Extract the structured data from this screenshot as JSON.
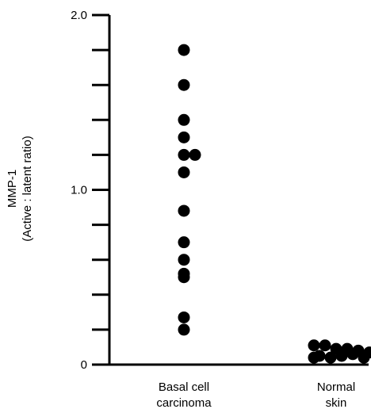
{
  "chart_data": {
    "type": "scatter",
    "ylabel_lines": [
      "MMP-1",
      "(Active : latent ratio)"
    ],
    "ylim": [
      0,
      2.0
    ],
    "y_major_ticks": [
      0,
      1.0,
      2.0
    ],
    "y_major_tick_labels": [
      "0",
      "1.0",
      "2.0"
    ],
    "y_minor_tick_step": 0.2,
    "categories": [
      {
        "lines": [
          "Basal cell",
          "carcinoma"
        ]
      },
      {
        "lines": [
          "Normal",
          "skin"
        ]
      }
    ],
    "grid": false,
    "legend": "none",
    "point_color": "#000000",
    "groups": [
      {
        "category_index": 0,
        "points": [
          {
            "y": 1.8,
            "offset": 0
          },
          {
            "y": 1.6,
            "offset": 0
          },
          {
            "y": 1.4,
            "offset": 0
          },
          {
            "y": 1.3,
            "offset": 0
          },
          {
            "y": 1.2,
            "offset": 0
          },
          {
            "y": 1.2,
            "offset": 1
          },
          {
            "y": 1.1,
            "offset": 0
          },
          {
            "y": 0.88,
            "offset": 0
          },
          {
            "y": 0.7,
            "offset": 0
          },
          {
            "y": 0.6,
            "offset": 0
          },
          {
            "y": 0.52,
            "offset": 0
          },
          {
            "y": 0.5,
            "offset": 0
          },
          {
            "y": 0.27,
            "offset": 0
          },
          {
            "y": 0.2,
            "offset": 0
          }
        ]
      },
      {
        "category_index": 1,
        "points": [
          {
            "y": 0.11,
            "offset": -2
          },
          {
            "y": 0.11,
            "offset": -1
          },
          {
            "y": 0.09,
            "offset": 0
          },
          {
            "y": 0.09,
            "offset": 1
          },
          {
            "y": 0.08,
            "offset": 2
          },
          {
            "y": 0.07,
            "offset": 3
          },
          {
            "y": 0.06,
            "offset": 1.5
          },
          {
            "y": 0.05,
            "offset": -1.5
          },
          {
            "y": 0.05,
            "offset": 0.5
          },
          {
            "y": 0.04,
            "offset": -2
          },
          {
            "y": 0.04,
            "offset": -0.5
          },
          {
            "y": 0.04,
            "offset": 2.5
          }
        ]
      }
    ]
  }
}
